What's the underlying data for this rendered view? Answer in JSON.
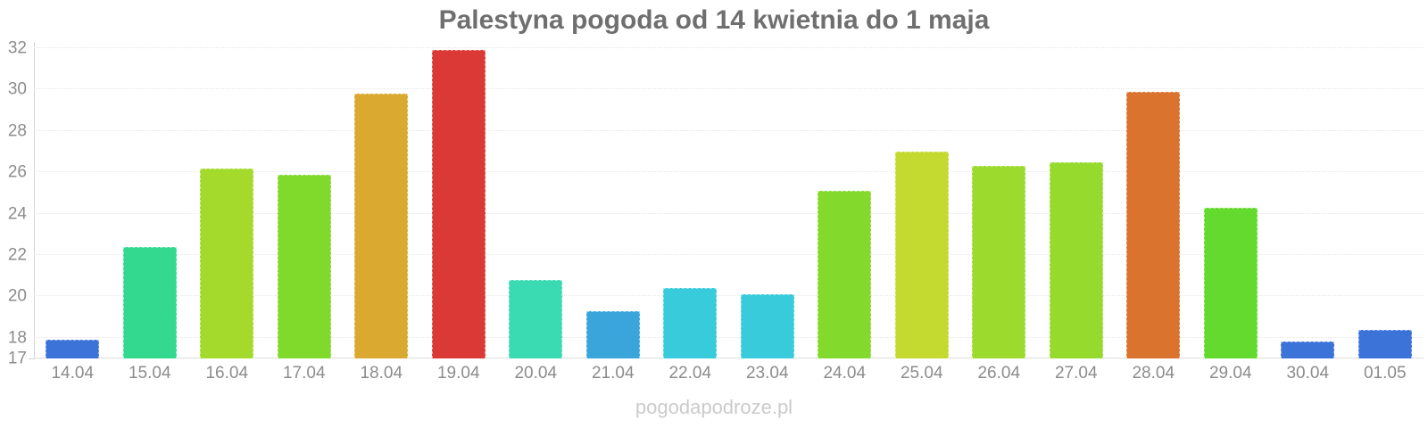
{
  "title": "Palestyna pogoda od 14 kwietnia do 1 maja",
  "watermark": "pogodapodroze.pl",
  "colors": {
    "background": "#ffffff",
    "title": "#6f6f6f",
    "tick_label": "#8c8c8c",
    "gridline": "#e7e7e7",
    "axis_line": "#d4d4d4",
    "watermark": "#cbcbcb"
  },
  "chart_data": {
    "type": "bar",
    "title": "Palestyna pogoda od 14 kwietnia do 1 maja",
    "xlabel": "",
    "ylabel": "",
    "ylim": [
      17,
      32
    ],
    "yticks": [
      17,
      18,
      20,
      22,
      24,
      26,
      28,
      30,
      32
    ],
    "grid": true,
    "legend": false,
    "categories": [
      "14.04",
      "15.04",
      "16.04",
      "17.04",
      "18.04",
      "19.04",
      "20.04",
      "21.04",
      "22.04",
      "23.04",
      "24.04",
      "25.04",
      "26.04",
      "27.04",
      "28.04",
      "29.04",
      "30.04",
      "01.05"
    ],
    "values": [
      17.9,
      22.4,
      26.2,
      25.9,
      29.8,
      31.9,
      20.8,
      19.3,
      20.4,
      20.1,
      25.1,
      27.0,
      26.3,
      26.5,
      29.9,
      24.3,
      17.8,
      18.4
    ],
    "bar_colors": [
      "#3c73d9",
      "#32d98f",
      "#a3da2b",
      "#7fda2b",
      "#d9a930",
      "#db3935",
      "#3adbb2",
      "#39a5da",
      "#37cbdb",
      "#37cbdb",
      "#83da2c",
      "#c5da30",
      "#9cda2d",
      "#95da2d",
      "#d9732e",
      "#65da2e",
      "#3c73d9",
      "#3c73d9"
    ]
  }
}
